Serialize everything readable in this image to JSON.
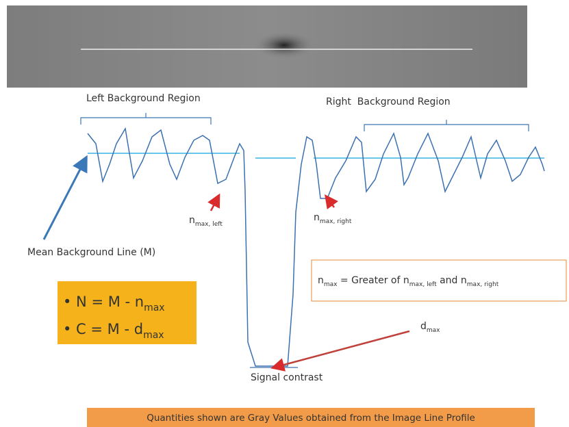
{
  "regions": {
    "left": "Left Background Region",
    "right": "Right  Background Region"
  },
  "markers": {
    "n_left": [
      "n",
      "max, left"
    ],
    "n_right": [
      "n",
      "max, right"
    ],
    "d_max": [
      "d",
      "max"
    ]
  },
  "mean_line": "Mean Background Line (M)",
  "definition": [
    "n",
    "max",
    " = Greater of n",
    "max, left",
    " and n",
    "max, right"
  ],
  "formulas": [
    [
      "• N = M - n",
      "max"
    ],
    [
      "• C = M - d",
      "max"
    ]
  ],
  "signal_contrast": "Signal contrast",
  "footer": "Quantities shown are Gray Values obtained from the Image Line Profile"
}
